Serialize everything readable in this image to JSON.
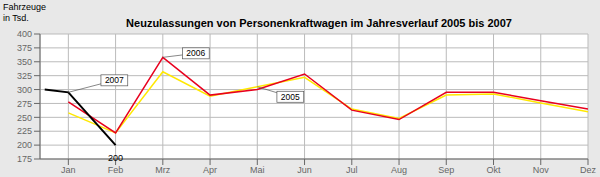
{
  "chart_data": {
    "type": "line",
    "title": "Neuzulassungen von Personenkraftwagen im Jahresverlauf 2005 bis 2007",
    "ylabel": "Fahrzeuge\nin Tsd.",
    "categories": [
      "Jan",
      "Feb",
      "Mrz",
      "Apr",
      "Mai",
      "Jun",
      "Jul",
      "Aug",
      "Sep",
      "Okt",
      "Nov",
      "Dez"
    ],
    "series": [
      {
        "color": "#FFE800",
        "values": [
          258,
          222,
          332,
          288,
          305,
          322,
          265,
          248,
          290,
          292,
          276,
          260
        ]
      },
      {
        "color": "#E8001E",
        "values": [
          278,
          222,
          358,
          290,
          300,
          328,
          263,
          246,
          295,
          295,
          280,
          265
        ]
      },
      {
        "color": "#000000",
        "x": [
          -0.5,
          0,
          1
        ],
        "values": [
          300,
          295,
          200
        ]
      }
    ],
    "xlim": [
      -0.6,
      11
    ],
    "ylim": [
      175,
      400
    ],
    "yticks": [
      175,
      200,
      225,
      250,
      275,
      300,
      325,
      350,
      375,
      400
    ],
    "grid": true,
    "annotations": [
      {
        "text": "200",
        "x": "Feb",
        "y": 200
      },
      {
        "text": "2006",
        "x": "Mrz",
        "y": 358
      },
      {
        "text": "2005",
        "x": "Mai",
        "y": 305
      },
      {
        "text": "2007",
        "x": "Jan",
        "y": 295
      }
    ]
  }
}
